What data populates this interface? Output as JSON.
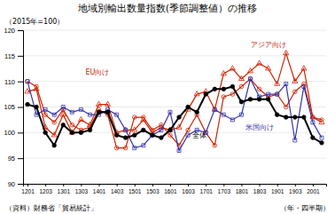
{
  "chart_data": {
    "type": "line",
    "title": "地域別輸出数量指数(季節調整値）の推移",
    "subtitle": "（2015年=100）",
    "xlabel": "（年・四半期）",
    "source": "（資料）財務省「貿易統計」",
    "categories": [
      "1201",
      null,
      "1203",
      null,
      "1301",
      null,
      "1303",
      null,
      "1401",
      null,
      "1403",
      null,
      "1501",
      null,
      "1503",
      null,
      "1601",
      null,
      "1603",
      null,
      "1701",
      null,
      "1703",
      null,
      "1801",
      null,
      "1803",
      null,
      "1901",
      null,
      "1903",
      null,
      "2001",
      null
    ],
    "ylim": [
      90,
      120
    ],
    "yticks": [
      90,
      95,
      100,
      105,
      110,
      115,
      120
    ],
    "grid": true,
    "series": [
      {
        "name": "EU向け",
        "color": "#cc2200",
        "marker": "circle-open",
        "values": [
          110.0,
          109.0,
          103.5,
          102.0,
          104.5,
          101.5,
          100.5,
          101.0,
          104.5,
          103.5,
          97.0,
          97.0,
          103.0,
          103.0,
          100.5,
          101.5,
          99.5,
          97.5,
          100.5,
          103.5,
          100.0,
          97.5,
          107.0,
          107.5,
          109.0,
          110.5,
          108.5,
          107.0,
          107.5,
          105.0,
          108.0,
          109.5,
          103.0,
          102.5
        ]
      },
      {
        "name": "アジア向け",
        "color": "#cc2200",
        "marker": "triangle-open",
        "values": [
          108.0,
          108.5,
          101.0,
          99.5,
          103.5,
          100.0,
          102.5,
          101.5,
          105.5,
          105.5,
          100.0,
          100.5,
          100.5,
          102.5,
          100.0,
          101.0,
          100.5,
          101.0,
          104.5,
          107.5,
          108.0,
          104.5,
          111.5,
          112.5,
          110.5,
          112.0,
          113.5,
          112.5,
          109.5,
          115.5,
          110.0,
          112.5,
          103.0,
          102.0
        ]
      },
      {
        "name": "米国向け",
        "color": "#3333aa",
        "marker": "square-open",
        "values": [
          110.0,
          103.5,
          104.5,
          103.5,
          105.0,
          104.0,
          104.5,
          103.5,
          103.5,
          104.5,
          103.5,
          100.5,
          97.0,
          97.5,
          99.5,
          100.5,
          104.0,
          96.5,
          99.5,
          100.5,
          100.0,
          104.5,
          103.5,
          102.5,
          103.5,
          110.5,
          107.0,
          107.5,
          107.5,
          109.5,
          98.5,
          109.0,
          102.0,
          99.0
        ]
      },
      {
        "name": "全体",
        "color": "#000000",
        "marker": "circle",
        "values": [
          105.5,
          105.0,
          100.0,
          97.5,
          101.5,
          100.0,
          100.0,
          100.5,
          104.0,
          104.0,
          99.5,
          99.0,
          99.5,
          100.5,
          99.5,
          99.0,
          100.5,
          103.0,
          105.0,
          104.0,
          107.5,
          108.5,
          108.5,
          109.0,
          106.0,
          106.5,
          106.5,
          106.5,
          103.5,
          103.0,
          103.0,
          103.0,
          99.0,
          98.0
        ]
      }
    ],
    "annotations": [
      {
        "text": "アジア向け",
        "x": 25,
        "y": 117.2,
        "color": "#cc2200"
      },
      {
        "text": "EU向け",
        "x": 6.5,
        "y": 111.8,
        "color": "#cc2200"
      },
      {
        "text": "全体",
        "x": 18.5,
        "y": 99.5,
        "color": "#000000"
      },
      {
        "text": "米国向け",
        "x": 24.5,
        "y": 101.0,
        "color": "#3333aa"
      }
    ]
  }
}
